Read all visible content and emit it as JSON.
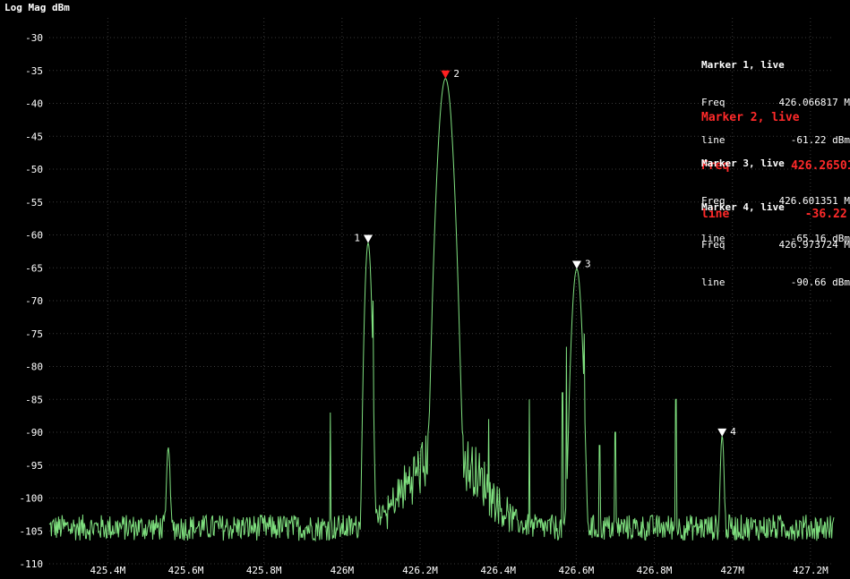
{
  "title": "Log Mag dBm",
  "colors": {
    "trace": "#7fe07f",
    "grid": "#3a3a3a",
    "active_marker": "#ff2020",
    "marker": "#ffffff"
  },
  "markers": [
    {
      "header": "Marker 1, live",
      "freq_label": "Freq",
      "freq": "426.066817 M",
      "line_label": "line",
      "line": "-61.22 dBm",
      "active": false
    },
    {
      "header": "Marker 2, live",
      "freq_label": "Freq",
      "freq": "426.265015 M",
      "line_label": "line",
      "line": "-36.22 dBm",
      "active": true
    },
    {
      "header": "Marker 3, live",
      "freq_label": "Freq",
      "freq": "426.601351 M",
      "line_label": "line",
      "line": "-65.16 dBm",
      "active": false
    },
    {
      "header": "Marker 4, live",
      "freq_label": "Freq",
      "freq": "426.973724 M",
      "line_label": "line",
      "line": "-90.66 dBm",
      "active": false
    }
  ],
  "chart_data": {
    "type": "line",
    "title": "Log Mag dBm",
    "xlabel": "",
    "ylabel": "",
    "x_unit": "MHz",
    "xlim": [
      425.25,
      427.26
    ],
    "ylim": [
      -110,
      -27
    ],
    "y_ticks": [
      -30,
      -35,
      -40,
      -45,
      -50,
      -55,
      -60,
      -65,
      -70,
      -75,
      -80,
      -85,
      -90,
      -95,
      -100,
      -105,
      -110
    ],
    "x_ticks": [
      425.4,
      425.6,
      425.8,
      426.0,
      426.2,
      426.4,
      426.6,
      426.8,
      427.0,
      427.2
    ],
    "x_tick_labels": [
      "425.4M",
      "425.6M",
      "425.8M",
      "426M",
      "426.2M",
      "426.4M",
      "426.6M",
      "426.8M",
      "427M",
      "427.2M"
    ],
    "grid": true,
    "noise_floor": -104.5,
    "peaks": [
      {
        "x": 425.555,
        "y": -92.5,
        "width": 0.004
      },
      {
        "x": 426.066817,
        "y": -61.22,
        "width": 0.006
      },
      {
        "x": 426.265015,
        "y": -36.22,
        "width": 0.012
      },
      {
        "x": 426.601351,
        "y": -65.16,
        "width": 0.009
      },
      {
        "x": 426.973724,
        "y": -90.66,
        "width": 0.004
      }
    ],
    "spurs": [
      {
        "x": 425.97,
        "y": -87
      },
      {
        "x": 426.08,
        "y": -70
      },
      {
        "x": 426.375,
        "y": -88
      },
      {
        "x": 426.48,
        "y": -85
      },
      {
        "x": 426.565,
        "y": -84
      },
      {
        "x": 426.575,
        "y": -77
      },
      {
        "x": 426.62,
        "y": -75
      },
      {
        "x": 426.66,
        "y": -92
      },
      {
        "x": 426.7,
        "y": -90
      },
      {
        "x": 426.855,
        "y": -85
      }
    ],
    "series": [
      {
        "marker_points": [
          {
            "id": "1",
            "x": 426.066817,
            "y": -61.22
          },
          {
            "id": "2",
            "x": 426.265015,
            "y": -36.22
          },
          {
            "id": "3",
            "x": 426.601351,
            "y": -65.16
          },
          {
            "id": "4",
            "x": 426.973724,
            "y": -90.66
          }
        ]
      }
    ]
  }
}
